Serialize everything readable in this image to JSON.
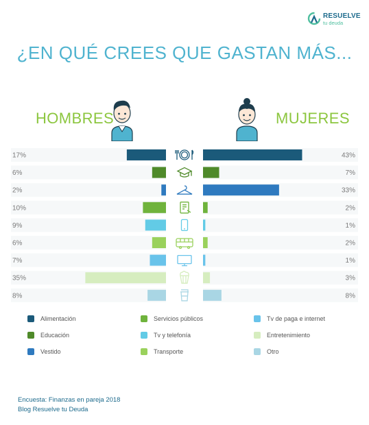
{
  "brand": {
    "name": "RESUELVE",
    "tagline": "tu deuda"
  },
  "title": "¿EN QUÉ CREES QUE GASTAN MÁS...",
  "labels": {
    "men": "HOMBRES",
    "women": "MUJERES"
  },
  "colors": {
    "Alimentación": "#1b5a7a",
    "Educación": "#4f8a2a",
    "Vestido": "#2f7abf",
    "Servicios públicos": "#6fb33c",
    "Tv y telefonía": "#62cbe6",
    "Transporte": "#9ad15c",
    "Tv de paga e internet": "#69c3ea",
    "Entretenimiento": "#d6edbf",
    "Otro": "#a9d6e4"
  },
  "chart_data": {
    "type": "bar",
    "categories": [
      "Alimentación",
      "Educación",
      "Vestido",
      "Servicios públicos",
      "Tv y telefonía",
      "Transporte",
      "Tv de paga e internet",
      "Entretenimiento",
      "Otro"
    ],
    "icons": [
      "plate-cutlery-icon",
      "graduation-cap-icon",
      "hanger-icon",
      "utility-bill-icon",
      "smartphone-icon",
      "bus-icon",
      "tv-icon",
      "popcorn-icon",
      "cup-icon"
    ],
    "series": [
      {
        "name": "HOMBRES",
        "values": [
          17,
          6,
          2,
          10,
          9,
          6,
          7,
          35,
          8
        ],
        "labels": [
          "17%",
          "6%",
          "2%",
          "10%",
          "9%",
          "6%",
          "7%",
          "35%",
          "8%"
        ]
      },
      {
        "name": "MUJERES",
        "values": [
          43,
          7,
          33,
          2,
          1,
          2,
          1,
          3,
          8
        ],
        "labels": [
          "43%",
          "7%",
          "33%",
          "2%",
          "1%",
          "2%",
          "1%",
          "3%",
          "8%"
        ]
      }
    ]
  },
  "legend": [
    "Alimentación",
    "Servicios públicos",
    "Tv de paga e internet",
    "Educación",
    "Tv y telefonía",
    "Entretenimiento",
    "Vestido",
    "Transporte",
    "Otro"
  ],
  "footer": {
    "line1": "Encuesta: Finanzas en pareja 2018",
    "line2": "Blog Resuelve tu Deuda"
  }
}
